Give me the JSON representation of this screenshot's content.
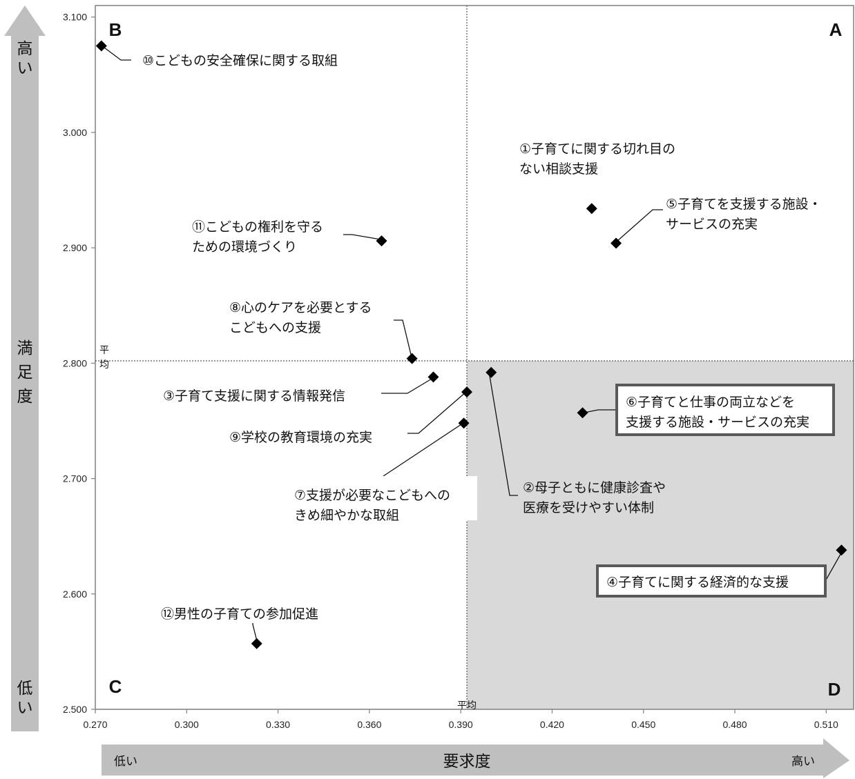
{
  "chart_data": {
    "type": "scatter",
    "xlabel": "要求度",
    "ylabel": "満足度",
    "xlim": [
      0.27,
      0.519
    ],
    "ylim": [
      2.5,
      3.11
    ],
    "x_ticks": [
      "0.270",
      "0.300",
      "0.330",
      "0.360",
      "0.390",
      "0.420",
      "0.450",
      "0.480",
      "0.510"
    ],
    "y_ticks": [
      "2.500",
      "2.600",
      "2.700",
      "2.800",
      "2.900",
      "3.000",
      "3.100"
    ],
    "mean_x": 0.392,
    "mean_y": 2.802,
    "mean_label": "平均",
    "mean_label_vertical": [
      "平",
      "均"
    ],
    "quadrants": [
      "A",
      "B",
      "C",
      "D"
    ],
    "x_arrow": {
      "low": "低い",
      "high": "高い"
    },
    "y_arrow": {
      "high": [
        "高",
        "い"
      ],
      "low": [
        "低",
        "い"
      ],
      "label": [
        "満",
        "足",
        "度"
      ]
    },
    "points": [
      {
        "id": "1",
        "x": 0.433,
        "y": 2.934,
        "label": [
          "①子育てに関する切れ目の",
          "ない相談支援"
        ],
        "boxed": false
      },
      {
        "id": "2",
        "x": 0.4,
        "y": 2.792,
        "label": [
          "②母子ともに健康診査や",
          "医療を受けやすい体制"
        ],
        "boxed": false
      },
      {
        "id": "3",
        "x": 0.381,
        "y": 2.788,
        "label": [
          "③子育て支援に関する情報発信"
        ],
        "boxed": false
      },
      {
        "id": "4",
        "x": 0.515,
        "y": 2.638,
        "label": [
          "④子育てに関する経済的な支援"
        ],
        "boxed": true
      },
      {
        "id": "5",
        "x": 0.441,
        "y": 2.904,
        "label": [
          "⑤子育てを支援する施設・",
          "サービスの充実"
        ],
        "boxed": false
      },
      {
        "id": "6",
        "x": 0.43,
        "y": 2.757,
        "label": [
          "⑥子育てと仕事の両立などを",
          "支援する施設・サービスの充実"
        ],
        "boxed": true
      },
      {
        "id": "7",
        "x": 0.391,
        "y": 2.748,
        "label": [
          "⑦支援が必要なこどもへの",
          "きめ細やかな取組"
        ],
        "boxed": false
      },
      {
        "id": "8",
        "x": 0.374,
        "y": 2.804,
        "label": [
          "⑧心のケアを必要とする",
          "こどもへの支援"
        ],
        "boxed": false
      },
      {
        "id": "9",
        "x": 0.392,
        "y": 2.775,
        "label": [
          "⑨学校の教育環境の充実"
        ],
        "boxed": false
      },
      {
        "id": "10",
        "x": 0.272,
        "y": 3.075,
        "label": [
          "⑩こどもの安全確保に関する取組"
        ],
        "boxed": false
      },
      {
        "id": "11",
        "x": 0.364,
        "y": 2.906,
        "label": [
          "⑪こどもの権利を守る",
          "ための環境づくり"
        ],
        "boxed": false
      },
      {
        "id": "12",
        "x": 0.323,
        "y": 2.557,
        "label": [
          "⑫男性の子育ての参加促進"
        ],
        "boxed": false
      }
    ]
  }
}
